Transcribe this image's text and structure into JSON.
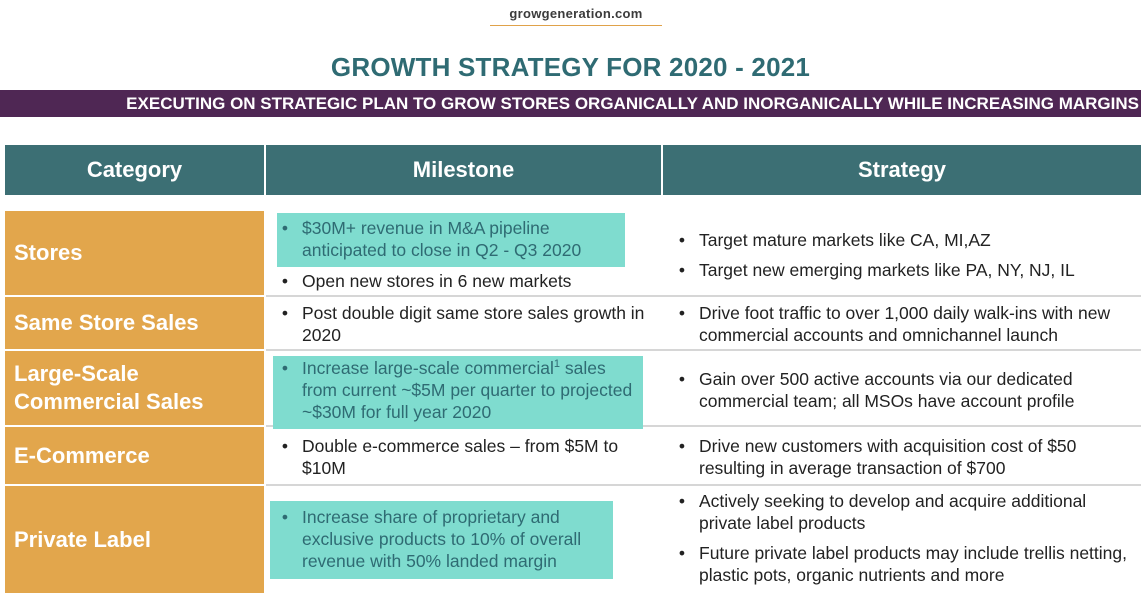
{
  "site": "growgeneration.com",
  "title": "GROWTH STRATEGY FOR 2020 - 2021",
  "banner": "EXECUTING ON STRATEGIC PLAN TO GROW STORES ORGANICALLY AND INORGANICALLY WHILE INCREASING MARGINS",
  "headers": {
    "category": "Category",
    "milestone": "Milestone",
    "strategy": "Strategy"
  },
  "bullet": "•",
  "rows": [
    {
      "category": "Stores",
      "milestones": [
        "$30M+ revenue in M&A pipeline anticipated to close in Q2 - Q3 2020",
        "Open new stores in 6 new markets"
      ],
      "strategies": [
        "Target mature markets like CA, MI,AZ",
        "Target new emerging markets like PA, NY, NJ, IL"
      ]
    },
    {
      "category": "Same Store Sales",
      "milestones": [
        "Post double digit same store sales growth in 2020"
      ],
      "strategies": [
        "Drive foot traffic to over 1,000 daily walk-ins with new commercial accounts and omnichannel launch"
      ]
    },
    {
      "category": "Large-Scale Commercial Sales",
      "milestones": [
        {
          "pre": "Increase large-scale commercial",
          "sup": "1",
          "post": " sales from current ~$5M per quarter to projected ~$30M for full year 2020"
        }
      ],
      "strategies": [
        "Gain over 500 active accounts via our dedicated commercial team; all MSOs have account profile"
      ]
    },
    {
      "category": "E-Commerce",
      "milestones": [
        "Double e-commerce sales – from $5M to $10M"
      ],
      "strategies": [
        "Drive new customers with acquisition cost of $50 resulting in average transaction of $700"
      ]
    },
    {
      "category": "Private Label",
      "milestones": [
        "Increase share of proprietary and exclusive products to 10% of overall revenue with 50% landed margin"
      ],
      "strategies": [
        "Actively seeking to develop and acquire additional private label products",
        "Future private label products may include trellis netting, plastic pots, organic nutrients and more"
      ]
    }
  ],
  "colors": {
    "title": "#2f6b73",
    "banner": "#4f2754",
    "header": "#3c6f74",
    "category": "#e2a64c",
    "highlight": "#7fdccf"
  }
}
